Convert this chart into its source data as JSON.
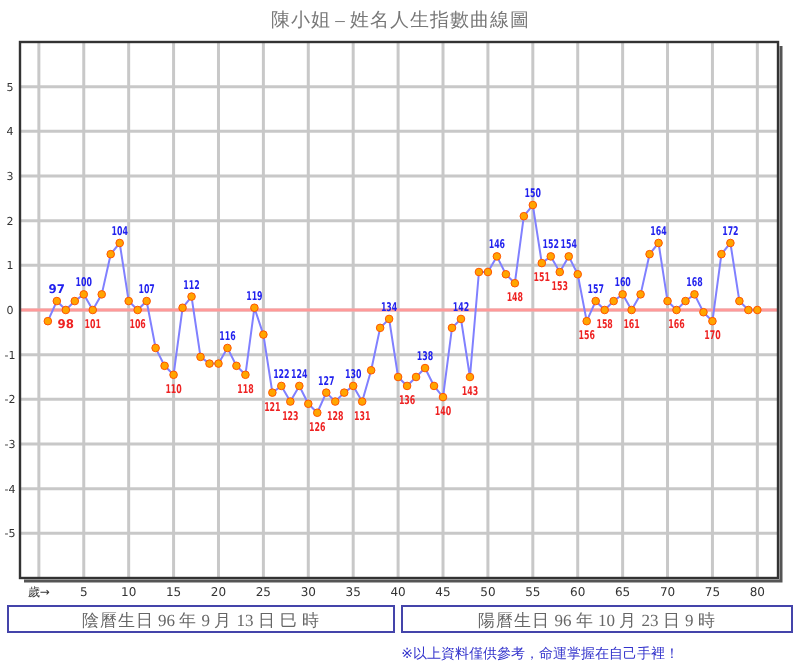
{
  "chart_data": {
    "type": "line",
    "title": "陳小姐 – 姓名人生指數曲線圖",
    "x": [
      1,
      2,
      3,
      4,
      5,
      6,
      7,
      8,
      9,
      10,
      11,
      12,
      13,
      14,
      15,
      16,
      17,
      18,
      19,
      20,
      21,
      22,
      23,
      24,
      25,
      26,
      27,
      28,
      29,
      30,
      31,
      32,
      33,
      34,
      35,
      36,
      37,
      38,
      39,
      40,
      41,
      42,
      43,
      44,
      45,
      46,
      47,
      48,
      49,
      50,
      51,
      52,
      53,
      54,
      55,
      56,
      57,
      58,
      59,
      60,
      61,
      62,
      63,
      64,
      65,
      66,
      67,
      68,
      69,
      70,
      71,
      72,
      73,
      74,
      75,
      76,
      77,
      78,
      79,
      80
    ],
    "series": [
      {
        "color": "#8080ff",
        "values": [
          -0.25,
          0.2,
          0,
          0.2,
          0.35,
          0,
          0.35,
          1.25,
          1.5,
          0.2,
          0,
          0.2,
          -0.85,
          -1.25,
          -1.45,
          0.05,
          0.3,
          -1.05,
          -1.2,
          -1.2,
          -0.85,
          -1.25,
          -1.45,
          0.05,
          -0.55,
          -1.85,
          -1.7,
          -2.05,
          -1.7,
          -2.1,
          -2.3,
          -1.85,
          -2.05,
          -1.85,
          -1.7,
          -2.05,
          -1.35,
          -0.4,
          -0.2,
          -1.5,
          -1.7,
          -1.5,
          -1.3,
          -1.7,
          -1.95,
          -0.4,
          -0.2,
          -1.5,
          0.85,
          0.85,
          1.2,
          0.8,
          0.6,
          2.1,
          2.35,
          1.05,
          1.2,
          0.85,
          1.2,
          0.8,
          -0.25,
          0.2,
          0,
          0.2,
          0.35,
          0,
          0.35,
          1.25,
          1.5,
          0.2,
          0,
          0.2,
          0.35,
          -0.05,
          -0.25,
          1.25,
          1.5,
          0.2,
          0,
          0
        ]
      }
    ],
    "marker": "circle",
    "xlim": [
      -2.1,
      82.3
    ],
    "xticks": [
      {
        "value": 0,
        "label": "歲→"
      },
      5,
      10,
      15,
      20,
      25,
      30,
      35,
      40,
      45,
      50,
      55,
      60,
      65,
      70,
      75,
      80
    ],
    "ylim": [
      -6,
      6
    ],
    "yticks": [
      -5,
      -4,
      -3,
      -2,
      -1,
      0,
      1,
      2,
      3,
      4,
      5
    ],
    "grid": true,
    "ref_lines": [
      {
        "axis": "y",
        "value": 0,
        "color": "#ff9999"
      }
    ],
    "annotations": [
      {
        "text": "97",
        "x": 2,
        "y": 0.2
      },
      {
        "text": "98",
        "x": 3,
        "y": 0
      },
      {
        "text": "100",
        "x": 5,
        "y": 0.35
      },
      {
        "text": "101",
        "x": 6,
        "y": 0
      },
      {
        "text": "104",
        "x": 9,
        "y": 1.5
      },
      {
        "text": "106",
        "x": 11,
        "y": 0
      },
      {
        "text": "107",
        "x": 12,
        "y": 0.2
      },
      {
        "text": "110",
        "x": 15,
        "y": -1.45
      },
      {
        "text": "112",
        "x": 17,
        "y": 0.3
      },
      {
        "text": "116",
        "x": 21,
        "y": -0.85
      },
      {
        "text": "118",
        "x": 23,
        "y": -1.45
      },
      {
        "text": "119",
        "x": 24,
        "y": 0.05
      },
      {
        "text": "121",
        "x": 26,
        "y": -1.85
      },
      {
        "text": "122",
        "x": 27,
        "y": -1.7
      },
      {
        "text": "123",
        "x": 28,
        "y": -2.05
      },
      {
        "text": "124",
        "x": 29,
        "y": -1.7
      },
      {
        "text": "126",
        "x": 31,
        "y": -2.3
      },
      {
        "text": "127",
        "x": 32,
        "y": -1.85
      },
      {
        "text": "128",
        "x": 33,
        "y": -2.05
      },
      {
        "text": "130",
        "x": 35,
        "y": -1.7
      },
      {
        "text": "131",
        "x": 36,
        "y": -2.05
      },
      {
        "text": "134",
        "x": 39,
        "y": -0.2
      },
      {
        "text": "136",
        "x": 41,
        "y": -1.7
      },
      {
        "text": "138",
        "x": 43,
        "y": -1.3
      },
      {
        "text": "140",
        "x": 45,
        "y": -1.95
      },
      {
        "text": "142",
        "x": 47,
        "y": -0.2
      },
      {
        "text": "143",
        "x": 48,
        "y": -1.5
      },
      {
        "text": "146",
        "x": 51,
        "y": 1.2
      },
      {
        "text": "148",
        "x": 53,
        "y": 0.6
      },
      {
        "text": "150",
        "x": 55,
        "y": 2.35
      },
      {
        "text": "151",
        "x": 56,
        "y": 1.05
      },
      {
        "text": "152",
        "x": 57,
        "y": 1.2
      },
      {
        "text": "153",
        "x": 58,
        "y": 0.85
      },
      {
        "text": "154",
        "x": 59,
        "y": 1.2
      },
      {
        "text": "156",
        "x": 61,
        "y": -0.25
      },
      {
        "text": "157",
        "x": 62,
        "y": 0.2
      },
      {
        "text": "158",
        "x": 63,
        "y": 0
      },
      {
        "text": "160",
        "x": 65,
        "y": 0.35
      },
      {
        "text": "161",
        "x": 66,
        "y": 0
      },
      {
        "text": "164",
        "x": 69,
        "y": 1.5
      },
      {
        "text": "166",
        "x": 71,
        "y": 0
      },
      {
        "text": "168",
        "x": 73,
        "y": 0.35
      },
      {
        "text": "170",
        "x": 75,
        "y": -0.25
      },
      {
        "text": "172",
        "x": 77,
        "y": 1.5
      },
      "陰曆生日 96 年 9 月 13 日 巳 時",
      "陽曆生日 96 年 10 月 23 日 9 時",
      "※以上資料僅供參考，命運掌握在自己手裡！"
    ]
  }
}
